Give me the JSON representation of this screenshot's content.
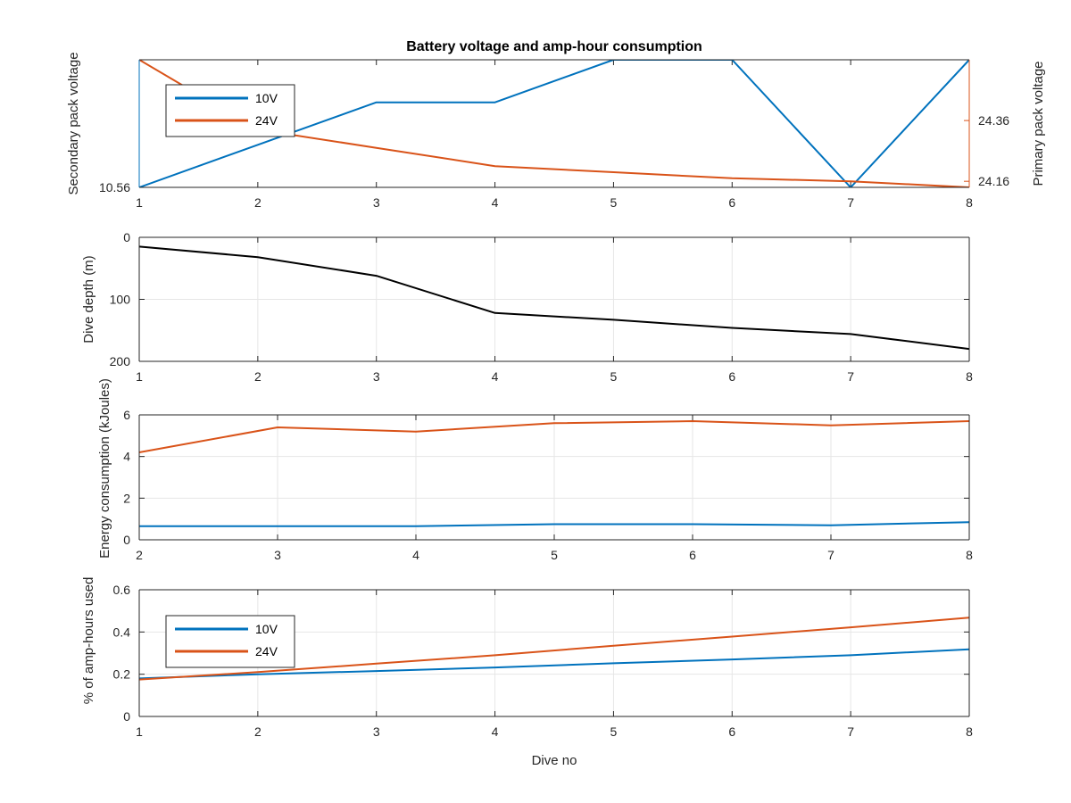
{
  "chart_data": [
    {
      "type": "line",
      "title": "Battery voltage and amp-hour consumption",
      "x": [
        1,
        2,
        3,
        4,
        5,
        6,
        7,
        8
      ],
      "xticks": [
        "1",
        "2",
        "3",
        "4",
        "5",
        "6",
        "7",
        "8"
      ],
      "xlim": [
        1,
        8
      ],
      "ylabel_left": "Secondary pack voltage",
      "ylabel_right": "Primary pack voltage",
      "yticks_left": [
        "10.56"
      ],
      "yticks_right": [
        "24.36",
        "24.16"
      ],
      "ylim_left": [
        10.56,
        10.62
      ],
      "ylim_right": [
        24.14,
        24.56
      ],
      "series": [
        {
          "name": "10V",
          "axis": "left",
          "color": "#0072BD",
          "values": [
            10.56,
            10.58,
            10.6,
            10.6,
            10.62,
            10.62,
            10.56,
            10.62
          ]
        },
        {
          "name": "24V",
          "axis": "right",
          "color": "#D95319",
          "values": [
            24.56,
            24.33,
            24.27,
            24.21,
            24.19,
            24.17,
            24.16,
            24.14
          ]
        }
      ],
      "legend": "top-left",
      "grid": false
    },
    {
      "type": "line",
      "x": [
        1,
        2,
        3,
        4,
        5,
        6,
        7,
        8
      ],
      "xticks": [
        "1",
        "2",
        "3",
        "4",
        "5",
        "6",
        "7",
        "8"
      ],
      "xlim": [
        1,
        8
      ],
      "ylabel": "Dive depth (m)",
      "yticks": [
        "0",
        "100",
        "200"
      ],
      "ylim": [
        0,
        200
      ],
      "y_reversed": true,
      "series": [
        {
          "color": "#000000",
          "values": [
            15,
            32,
            62,
            122,
            133,
            146,
            156,
            180
          ]
        }
      ],
      "grid": true
    },
    {
      "type": "line",
      "x": [
        2,
        3,
        4,
        5,
        6,
        7,
        8
      ],
      "xticks": [
        "2",
        "3",
        "4",
        "5",
        "6",
        "7",
        "8"
      ],
      "xlim": [
        2,
        8
      ],
      "ylabel": "Energy consumption (kJoules)",
      "yticks": [
        "0",
        "2",
        "4",
        "6"
      ],
      "ylim": [
        0,
        6
      ],
      "series": [
        {
          "name": "10V",
          "color": "#0072BD",
          "values": [
            0.65,
            0.65,
            0.65,
            0.75,
            0.75,
            0.7,
            0.85
          ]
        },
        {
          "name": "24V",
          "color": "#D95319",
          "values": [
            4.2,
            5.4,
            5.2,
            5.6,
            5.7,
            5.5,
            5.7
          ]
        }
      ],
      "grid": true
    },
    {
      "type": "line",
      "x": [
        1,
        2,
        3,
        4,
        5,
        6,
        7,
        8
      ],
      "xticks": [
        "1",
        "2",
        "3",
        "4",
        "5",
        "6",
        "7",
        "8"
      ],
      "xlim": [
        1,
        8
      ],
      "xlabel": "Dive no",
      "ylabel": "% of amp-hours used",
      "yticks": [
        "0",
        "0.2",
        "0.4",
        "0.6"
      ],
      "ylim": [
        0,
        0.6
      ],
      "series": [
        {
          "name": "10V",
          "color": "#0072BD",
          "values": [
            0.18,
            0.2,
            0.215,
            0.232,
            0.252,
            0.27,
            0.29,
            0.318
          ]
        },
        {
          "name": "24V",
          "color": "#D95319",
          "values": [
            0.175,
            0.21,
            0.25,
            0.29,
            0.335,
            0.378,
            0.422,
            0.468
          ]
        }
      ],
      "legend": "top-left",
      "grid": true
    }
  ],
  "colors": {
    "ten_volt": "#0072BD",
    "twentyfour_volt": "#D95319",
    "depth": "#000000",
    "grid": "#e6e6e6",
    "axes": "#262626"
  }
}
